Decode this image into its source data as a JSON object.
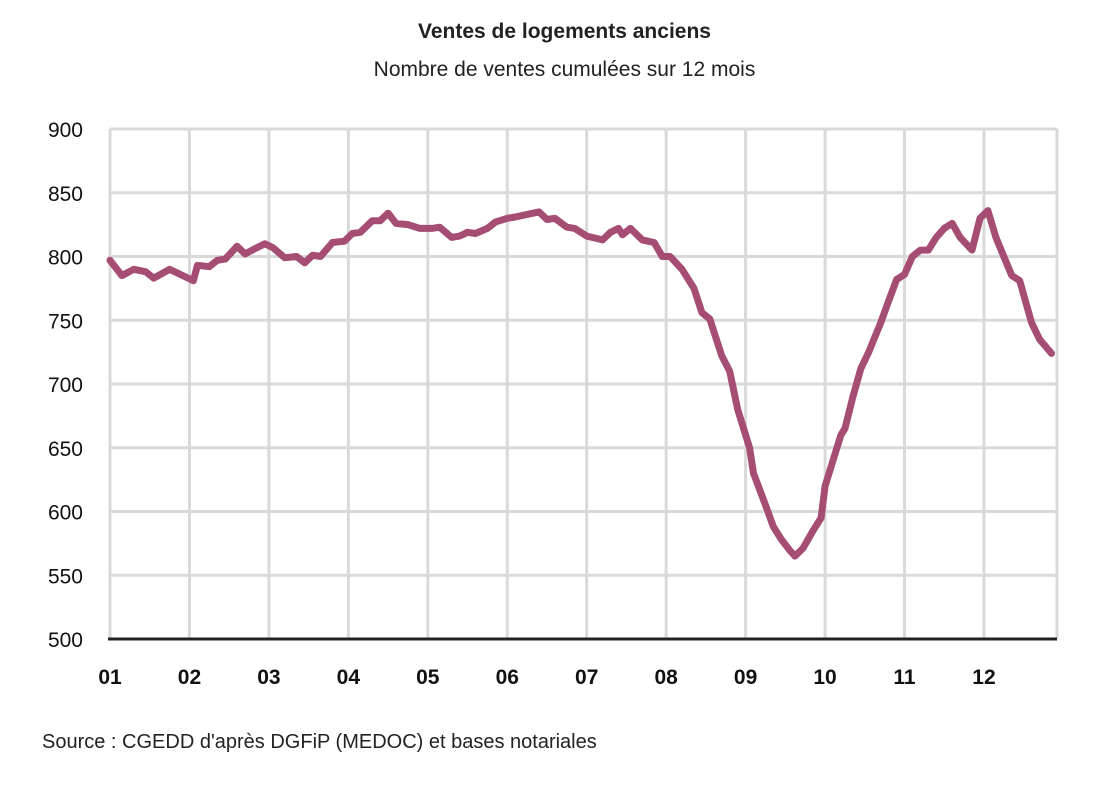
{
  "chart_data": {
    "type": "line",
    "title": "Ventes de logements anciens",
    "subtitle": "Nombre de ventes cumulées sur 12 mois",
    "source": "Source : CGEDD d'après DGFiP (MEDOC) et bases notariales",
    "xlabel": "",
    "ylabel": "",
    "ylim": [
      500,
      900
    ],
    "yticks": [
      "500",
      "550",
      "600",
      "650",
      "700",
      "750",
      "800",
      "850",
      "900"
    ],
    "xlim": [
      2001,
      2012.95
    ],
    "xticks": [
      "01",
      "02",
      "03",
      "04",
      "05",
      "06",
      "07",
      "08",
      "09",
      "10",
      "11",
      "12"
    ],
    "grid": true,
    "line_color": "#a64d74",
    "series": [
      {
        "x": [
          2001.0,
          2001.15,
          2001.3,
          2001.45,
          2001.55,
          2001.75,
          2001.95,
          2002.05,
          2002.1,
          2002.25,
          2002.35,
          2002.45,
          2002.6,
          2002.7,
          2002.85,
          2002.95,
          2003.05,
          2003.2,
          2003.35,
          2003.45,
          2003.55,
          2003.65,
          2003.8,
          2003.95,
          2004.05,
          2004.15,
          2004.3,
          2004.4,
          2004.5,
          2004.6,
          2004.75,
          2004.9,
          2005.05,
          2005.15,
          2005.3,
          2005.4,
          2005.5,
          2005.6,
          2005.75,
          2005.85,
          2006.0,
          2006.1,
          2006.25,
          2006.4,
          2006.5,
          2006.6,
          2006.75,
          2006.85,
          2007.0,
          2007.2,
          2007.3,
          2007.4,
          2007.45,
          2007.55,
          2007.7,
          2007.85,
          2007.95,
          2008.05,
          2008.2,
          2008.35,
          2008.45,
          2008.55,
          2008.7,
          2008.8,
          2008.9,
          2009.05,
          2009.1,
          2009.25,
          2009.35,
          2009.45,
          2009.55,
          2009.62,
          2009.72,
          2009.85,
          2009.95,
          2010.0,
          2010.1,
          2010.2,
          2010.25,
          2010.35,
          2010.45,
          2010.55,
          2010.7,
          2010.8,
          2010.9,
          2011.0,
          2011.1,
          2011.2,
          2011.3,
          2011.4,
          2011.5,
          2011.6,
          2011.7,
          2011.85,
          2011.95,
          2012.05,
          2012.15,
          2012.25,
          2012.35,
          2012.45,
          2012.6,
          2012.7,
          2012.85
        ],
        "values": [
          797,
          785,
          790,
          788,
          783,
          790,
          784,
          781,
          793,
          792,
          797,
          798,
          808,
          802,
          807,
          810,
          807,
          799,
          800,
          795,
          801,
          800,
          811,
          812,
          818,
          819,
          828,
          828,
          834,
          826,
          825,
          822,
          822,
          823,
          815,
          816,
          819,
          818,
          822,
          827,
          830,
          831,
          833,
          835,
          829,
          830,
          823,
          822,
          816,
          813,
          819,
          822,
          817,
          822,
          813,
          811,
          800,
          800,
          790,
          775,
          756,
          751,
          722,
          710,
          680,
          650,
          630,
          605,
          588,
          578,
          570,
          565,
          571,
          585,
          595,
          620,
          640,
          660,
          665,
          690,
          712,
          725,
          748,
          765,
          782,
          786,
          800,
          805,
          805,
          815,
          822,
          826,
          815,
          805,
          830,
          836,
          815,
          800,
          785,
          781,
          748,
          735,
          724
        ]
      }
    ]
  }
}
